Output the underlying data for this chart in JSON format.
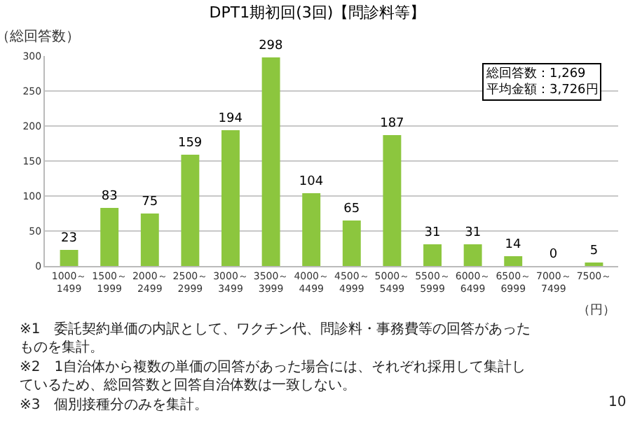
{
  "chart_data": {
    "type": "bar",
    "title": "DPT1期初回(3回)【問診料等】",
    "ylabel": "（総回答数）",
    "xlabel": "（円）",
    "categories": [
      "1000～\n1499",
      "1500～\n1999",
      "2000～\n2499",
      "2500～\n2999",
      "3000～\n3499",
      "3500～\n3999",
      "4000～\n4499",
      "4500～\n4999",
      "5000～\n5499",
      "5500～\n5999",
      "6000～\n6499",
      "6500～\n6999",
      "7000～\n7499",
      "7500～"
    ],
    "values": [
      23,
      83,
      75,
      159,
      194,
      298,
      104,
      65,
      187,
      31,
      31,
      14,
      0,
      5
    ],
    "color": "#8cc63e",
    "ylim": [
      0,
      300
    ],
    "yticks": [
      0,
      50,
      100,
      150,
      200,
      250,
      300
    ],
    "grid": "y",
    "data_labels": true,
    "legend": false,
    "annotations": [
      "総回答数：1,269\n平均金額：3,726円",
      "※1　委託契約単価の内訳として、ワクチン代、問診料・事務費等の回答があったものを集計。",
      "※2　1自治体から複数の単価の回答があった場合には、それぞれ採用して集計しているため、総回答数と回答自治体数は一致しない。",
      "※3　個別接種分のみを集計。",
      "10"
    ]
  }
}
